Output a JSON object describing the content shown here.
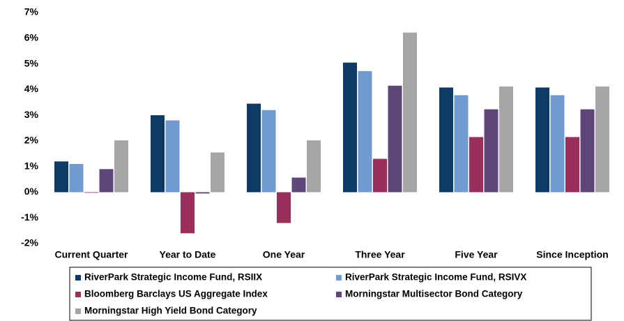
{
  "chart_data": {
    "type": "bar",
    "categories": [
      "Current Quarter",
      "Year to Date",
      "One Year",
      "Three Year",
      "Five Year",
      "Since Inception"
    ],
    "series": [
      {
        "name": "RiverPark Strategic Income Fund, RSIIX",
        "color": "#0e3a66",
        "values": [
          1.2,
          3.0,
          3.45,
          5.05,
          4.08,
          4.08
        ]
      },
      {
        "name": "RiverPark Strategic Income Fund, RSIVX",
        "color": "#6f9bd1",
        "values": [
          1.1,
          2.8,
          3.2,
          4.72,
          3.78,
          3.78
        ]
      },
      {
        "name": "Bloomberg Barclays US Aggregate Index",
        "color": "#9b2d5a",
        "values": [
          0,
          -1.6,
          -1.2,
          1.3,
          2.15,
          2.15
        ]
      },
      {
        "name": "Morningstar Multisector Bond Category",
        "color": "#5e4679",
        "values": [
          0.9,
          -0.05,
          0.57,
          4.15,
          3.23,
          3.23
        ]
      },
      {
        "name": "Morningstar High Yield Bond Category",
        "color": "#a6a6a6",
        "values": [
          2.02,
          1.55,
          2.02,
          6.22,
          4.12,
          4.12
        ]
      }
    ],
    "ylim": [
      -2,
      7
    ],
    "yticks": [
      {
        "value": -2,
        "label": "-2%"
      },
      {
        "value": -1,
        "label": "-1%"
      },
      {
        "value": 0,
        "label": "0%"
      },
      {
        "value": 1,
        "label": "1%"
      },
      {
        "value": 2,
        "label": "2%"
      },
      {
        "value": 3,
        "label": "3%"
      },
      {
        "value": 4,
        "label": "4%"
      },
      {
        "value": 5,
        "label": "5%"
      },
      {
        "value": 6,
        "label": "6%"
      },
      {
        "value": 7,
        "label": "7%"
      }
    ],
    "grid": false
  }
}
